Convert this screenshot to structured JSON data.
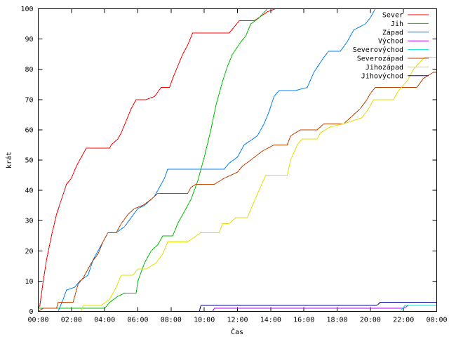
{
  "chart_data": {
    "type": "line",
    "xlabel": "Čas",
    "ylabel": "krát",
    "x_unit": "hours",
    "xlim": [
      0,
      24
    ],
    "ylim": [
      0,
      100
    ],
    "grid": false,
    "legend_position": "top-right",
    "x_ticks": [
      {
        "value": 0,
        "label": "00:00"
      },
      {
        "value": 2,
        "label": "02:00"
      },
      {
        "value": 4,
        "label": "04:00"
      },
      {
        "value": 6,
        "label": "06:00"
      },
      {
        "value": 8,
        "label": "08:00"
      },
      {
        "value": 10,
        "label": "10:00"
      },
      {
        "value": 12,
        "label": "12:00"
      },
      {
        "value": 14,
        "label": "14:00"
      },
      {
        "value": 16,
        "label": "16:00"
      },
      {
        "value": 18,
        "label": "18:00"
      },
      {
        "value": 20,
        "label": "20:00"
      },
      {
        "value": 22,
        "label": "22:00"
      },
      {
        "value": 24,
        "label": "00:00"
      }
    ],
    "y_ticks": [
      0,
      10,
      20,
      30,
      40,
      50,
      60,
      70,
      80,
      90,
      100
    ],
    "series": [
      {
        "name": "Sever",
        "color": "#ff0000",
        "points": [
          [
            0,
            1
          ],
          [
            0.1,
            2
          ],
          [
            0.3,
            10
          ],
          [
            0.5,
            17
          ],
          [
            0.8,
            25
          ],
          [
            1.1,
            32
          ],
          [
            1.4,
            37
          ],
          [
            1.7,
            42
          ],
          [
            2.0,
            44
          ],
          [
            2.3,
            48
          ],
          [
            2.6,
            51
          ],
          [
            2.9,
            54
          ],
          [
            3.5,
            54
          ],
          [
            4.3,
            54
          ],
          [
            4.4,
            55
          ],
          [
            4.8,
            57
          ],
          [
            5.0,
            59
          ],
          [
            5.3,
            63
          ],
          [
            5.6,
            67
          ],
          [
            5.9,
            70
          ],
          [
            6.5,
            70
          ],
          [
            7.0,
            71
          ],
          [
            7.4,
            74
          ],
          [
            7.9,
            74
          ],
          [
            8.1,
            77
          ],
          [
            8.4,
            81
          ],
          [
            8.7,
            85
          ],
          [
            9.0,
            88
          ],
          [
            9.3,
            92
          ],
          [
            11.0,
            92
          ],
          [
            11.5,
            92
          ],
          [
            11.8,
            94
          ],
          [
            12.1,
            96
          ],
          [
            13.0,
            96
          ],
          [
            13.8,
            99
          ],
          [
            14.3,
            100
          ]
        ]
      },
      {
        "name": "Jih",
        "color": "#00c000",
        "points": [
          [
            0,
            1
          ],
          [
            4.0,
            1
          ],
          [
            4.3,
            3
          ],
          [
            4.8,
            5
          ],
          [
            5.2,
            6
          ],
          [
            5.9,
            6
          ],
          [
            6.0,
            10
          ],
          [
            6.4,
            16
          ],
          [
            6.8,
            20
          ],
          [
            7.2,
            22
          ],
          [
            7.5,
            25
          ],
          [
            8.1,
            25
          ],
          [
            8.4,
            29
          ],
          [
            8.8,
            33
          ],
          [
            9.2,
            37
          ],
          [
            9.6,
            43
          ],
          [
            10.0,
            51
          ],
          [
            10.4,
            60
          ],
          [
            10.7,
            68
          ],
          [
            11.1,
            76
          ],
          [
            11.4,
            81
          ],
          [
            11.7,
            85
          ],
          [
            12.2,
            89
          ],
          [
            12.5,
            91
          ],
          [
            12.8,
            95
          ],
          [
            13.3,
            97
          ],
          [
            13.8,
            100
          ]
        ]
      },
      {
        "name": "Západ",
        "color": "#0080ff",
        "points": [
          [
            0,
            0
          ],
          [
            1.2,
            0
          ],
          [
            1.5,
            4
          ],
          [
            1.7,
            7
          ],
          [
            2.2,
            8
          ],
          [
            2.5,
            10
          ],
          [
            3.0,
            12
          ],
          [
            3.3,
            17
          ],
          [
            3.7,
            21
          ],
          [
            4.0,
            24
          ],
          [
            4.2,
            26
          ],
          [
            4.7,
            26
          ],
          [
            5.2,
            28
          ],
          [
            5.6,
            31
          ],
          [
            6.0,
            34
          ],
          [
            6.4,
            35
          ],
          [
            7.0,
            38
          ],
          [
            7.3,
            41
          ],
          [
            7.6,
            44
          ],
          [
            7.8,
            47
          ],
          [
            9.0,
            47
          ],
          [
            10.5,
            47
          ],
          [
            11.2,
            47
          ],
          [
            11.5,
            49
          ],
          [
            12.0,
            51
          ],
          [
            12.4,
            55
          ],
          [
            13.2,
            58
          ],
          [
            13.6,
            62
          ],
          [
            13.9,
            66
          ],
          [
            14.2,
            71
          ],
          [
            14.5,
            73
          ],
          [
            15.5,
            73
          ],
          [
            16.2,
            74
          ],
          [
            16.6,
            79
          ],
          [
            17.2,
            84
          ],
          [
            17.5,
            86
          ],
          [
            18.2,
            86
          ],
          [
            18.6,
            89
          ],
          [
            19.0,
            93
          ],
          [
            19.7,
            95
          ],
          [
            20.0,
            97
          ],
          [
            20.3,
            100
          ]
        ]
      },
      {
        "name": "Východ",
        "color": "#c000ff",
        "points": [
          [
            0,
            0
          ],
          [
            10.5,
            0
          ],
          [
            10.6,
            1
          ],
          [
            11.5,
            1
          ],
          [
            22.0,
            1
          ],
          [
            22.3,
            2
          ],
          [
            24.0,
            2
          ]
        ]
      },
      {
        "name": "Severovýchod",
        "color": "#00e0e0",
        "points": [
          [
            0,
            0
          ],
          [
            21.8,
            0
          ],
          [
            22.1,
            2
          ],
          [
            24.0,
            2
          ]
        ]
      },
      {
        "name": "Severozápad",
        "color": "#c04000",
        "points": [
          [
            0,
            0
          ],
          [
            0.3,
            1
          ],
          [
            1.1,
            1
          ],
          [
            1.2,
            3
          ],
          [
            2.1,
            3
          ],
          [
            2.2,
            5
          ],
          [
            2.4,
            9
          ],
          [
            2.7,
            11
          ],
          [
            3.0,
            14
          ],
          [
            3.2,
            16
          ],
          [
            3.6,
            19
          ],
          [
            3.9,
            23
          ],
          [
            4.2,
            26
          ],
          [
            4.7,
            26
          ],
          [
            5.0,
            29
          ],
          [
            5.4,
            32
          ],
          [
            5.8,
            34
          ],
          [
            6.3,
            35
          ],
          [
            6.8,
            37
          ],
          [
            7.2,
            39
          ],
          [
            9.0,
            39
          ],
          [
            9.2,
            41
          ],
          [
            9.5,
            42
          ],
          [
            10.6,
            42
          ],
          [
            11.2,
            44
          ],
          [
            12.0,
            46
          ],
          [
            12.3,
            48
          ],
          [
            12.8,
            50
          ],
          [
            13.5,
            53
          ],
          [
            14.2,
            55
          ],
          [
            15.0,
            55
          ],
          [
            15.2,
            58
          ],
          [
            15.8,
            60
          ],
          [
            16.8,
            60
          ],
          [
            17.2,
            62
          ],
          [
            18.4,
            62
          ],
          [
            19.0,
            65
          ],
          [
            19.4,
            67
          ],
          [
            19.8,
            70
          ],
          [
            20.0,
            72
          ],
          [
            20.3,
            74
          ],
          [
            21.4,
            74
          ],
          [
            22.8,
            74
          ],
          [
            23.2,
            77
          ],
          [
            23.8,
            79
          ],
          [
            24.0,
            79
          ]
        ]
      },
      {
        "name": "Jihozápad",
        "color": "#e0e000",
        "points": [
          [
            0,
            0
          ],
          [
            2.6,
            0
          ],
          [
            2.7,
            2
          ],
          [
            3.8,
            2
          ],
          [
            4.3,
            4
          ],
          [
            4.7,
            8
          ],
          [
            5.0,
            12
          ],
          [
            5.7,
            12
          ],
          [
            6.0,
            14
          ],
          [
            6.5,
            14
          ],
          [
            7.1,
            16
          ],
          [
            7.5,
            19
          ],
          [
            7.8,
            23
          ],
          [
            9.0,
            23
          ],
          [
            9.8,
            26
          ],
          [
            10.9,
            26
          ],
          [
            11.1,
            29
          ],
          [
            11.5,
            29
          ],
          [
            11.9,
            31
          ],
          [
            12.6,
            31
          ],
          [
            12.9,
            35
          ],
          [
            13.3,
            40
          ],
          [
            13.7,
            45
          ],
          [
            15.0,
            45
          ],
          [
            15.2,
            50
          ],
          [
            15.6,
            55
          ],
          [
            15.9,
            57
          ],
          [
            16.8,
            57
          ],
          [
            17.0,
            59
          ],
          [
            17.6,
            61
          ],
          [
            18.4,
            62
          ],
          [
            19.5,
            64
          ],
          [
            19.9,
            67
          ],
          [
            20.2,
            70
          ],
          [
            21.4,
            70
          ],
          [
            21.7,
            73
          ],
          [
            22.2,
            76
          ],
          [
            22.6,
            80
          ],
          [
            23.1,
            83
          ],
          [
            23.3,
            84
          ],
          [
            24.0,
            84
          ]
        ]
      },
      {
        "name": "Jihovýchod",
        "color": "#0000a0",
        "points": [
          [
            0,
            0
          ],
          [
            9.7,
            0
          ],
          [
            9.8,
            2
          ],
          [
            20.4,
            2
          ],
          [
            20.6,
            3
          ],
          [
            24.0,
            3
          ]
        ]
      }
    ]
  }
}
